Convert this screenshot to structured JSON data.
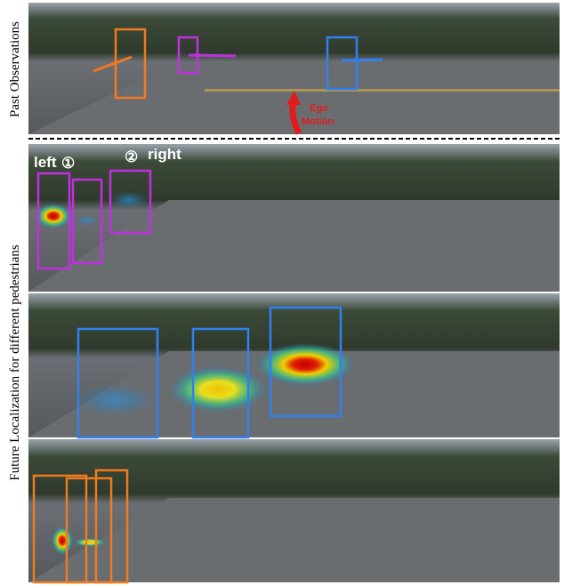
{
  "labels": {
    "past": "Past Observations",
    "future": "Future Localization for different pedestrians"
  },
  "annotations": {
    "left": "left",
    "circle1": "①",
    "circle2": "②",
    "right": "right",
    "ego": [
      "Ego",
      "Motion"
    ]
  }
}
